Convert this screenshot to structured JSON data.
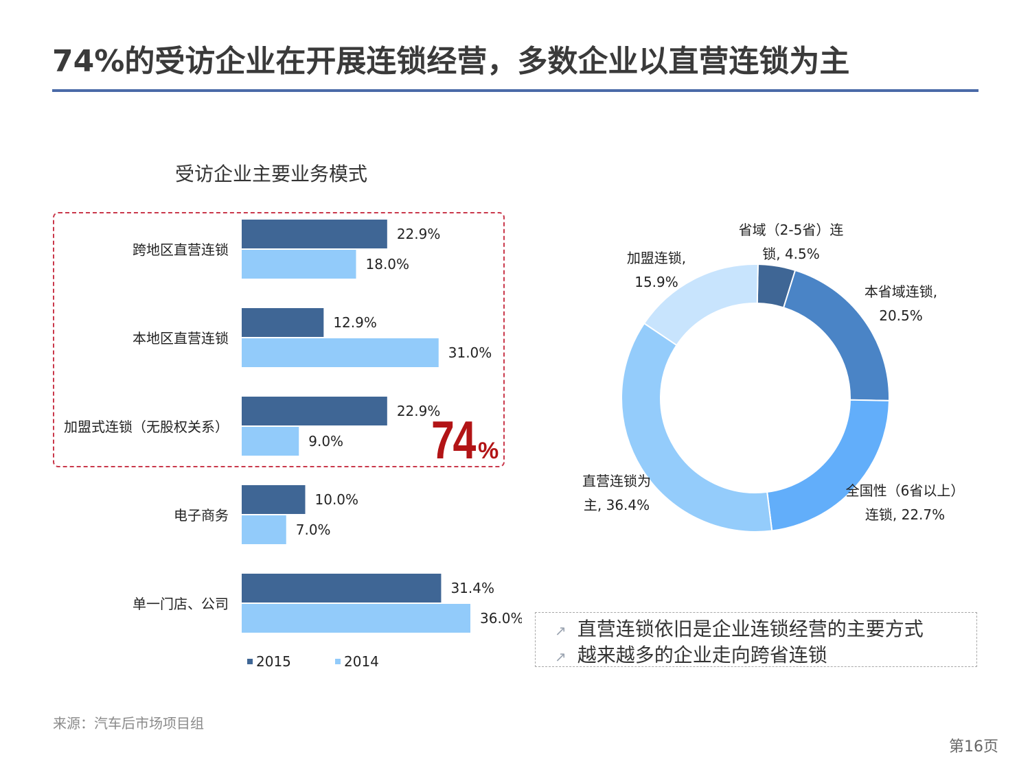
{
  "title": "74%的受访企业在开展连锁经营，多数企业以直营连锁为主",
  "chart_data": [
    {
      "type": "bar",
      "title": "受访企业主要业务模式",
      "categories": [
        "跨地区直营连锁",
        "本地区直营连锁",
        "加盟式连锁（无股权关系）",
        "电子商务",
        "单一门店、公司"
      ],
      "series": [
        {
          "name": "2015",
          "values": [
            22.9,
            12.9,
            22.9,
            10.0,
            31.4
          ],
          "labels": [
            "22.9%",
            "12.9%",
            "22.9%",
            "10.0%",
            "31.4%"
          ],
          "color": "#3f6695"
        },
        {
          "name": "2014",
          "values": [
            18.0,
            31.0,
            9.0,
            7.0,
            36.0
          ],
          "labels": [
            "18.0%",
            "31.0%",
            "9.0%",
            "7.0%",
            "36.0%"
          ],
          "color": "#92cbfa"
        }
      ],
      "xlim": [
        0,
        40
      ],
      "legend": "bottom"
    },
    {
      "type": "pie",
      "donut": true,
      "slices": [
        {
          "label_lines": [
            "省域（2-5省）连",
            "锁, 4.5%"
          ],
          "value": 4.5,
          "color": "#3f6695"
        },
        {
          "label_lines": [
            "本省域连锁,",
            "20.5%"
          ],
          "value": 20.5,
          "color": "#4a84c6"
        },
        {
          "label_lines": [
            "全国性（6省以上）",
            "连锁, 22.7%"
          ],
          "value": 22.7,
          "color": "#62aefa"
        },
        {
          "label_lines": [
            "直营连锁为",
            "主, 36.4%"
          ],
          "value": 36.4,
          "color": "#94ccfb"
        },
        {
          "label_lines": [
            "加盟连锁,",
            "15.9%"
          ],
          "value": 15.9,
          "color": "#c8e4fd"
        }
      ]
    }
  ],
  "highlight": {
    "number": "74",
    "percent": "%",
    "color": "#b21416"
  },
  "summary": {
    "items": [
      "直营连锁依旧是企业连锁经营的主要方式",
      "越来越多的企业走向跨省连锁"
    ]
  },
  "source": "来源：汽车后市场项目组",
  "page_number": "第16页"
}
